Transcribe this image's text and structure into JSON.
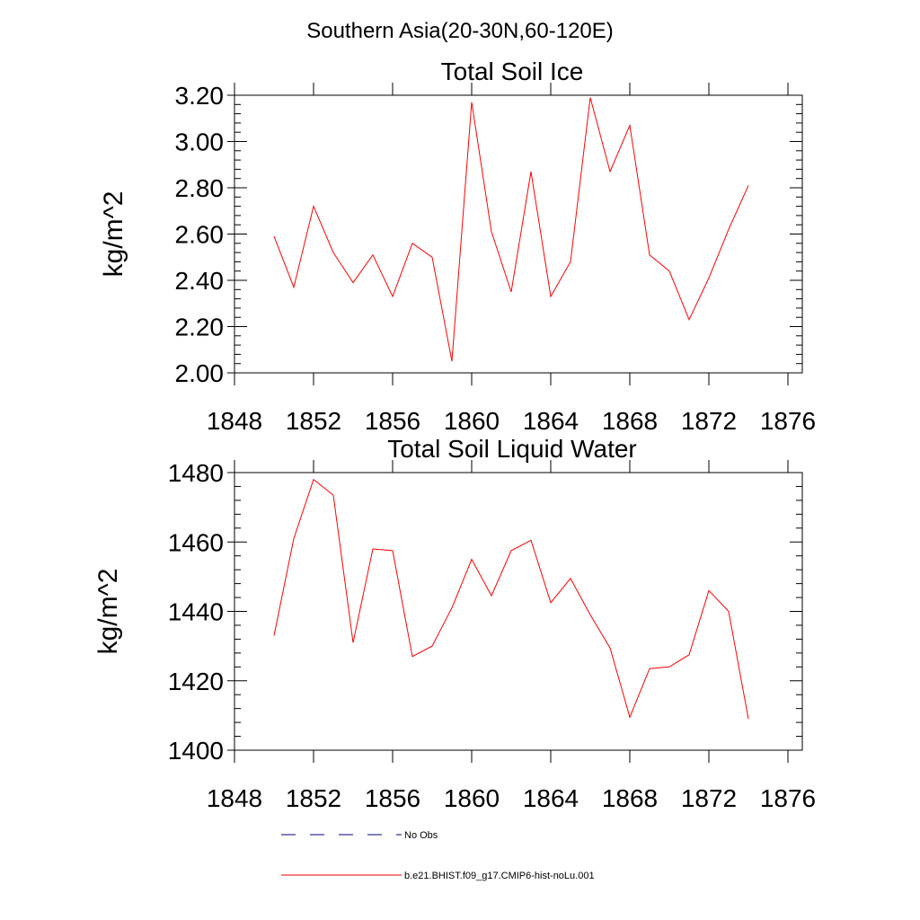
{
  "figure": {
    "main_title": "Southern Asia(20-30N,60-120E)"
  },
  "chart_data": [
    {
      "type": "line",
      "title": "Total Soil Ice",
      "xlabel": "",
      "ylabel": "kg/m^2",
      "xlim": [
        1848,
        1876
      ],
      "ylim": [
        2.0,
        3.2
      ],
      "xticks": [
        "1848",
        "1852",
        "1856",
        "1860",
        "1864",
        "1868",
        "1872",
        "1876"
      ],
      "yticks": [
        "2.00",
        "2.20",
        "2.40",
        "2.60",
        "2.80",
        "3.00",
        "3.20"
      ],
      "x": [
        1850,
        1851,
        1852,
        1853,
        1854,
        1855,
        1856,
        1857,
        1858,
        1859,
        1860,
        1861,
        1862,
        1863,
        1864,
        1865,
        1866,
        1867,
        1868,
        1869,
        1870,
        1871,
        1872,
        1873,
        1874
      ],
      "series": [
        {
          "name": "b.e21.BHIST.f09_g17.CMIP6-hist-noLu.001",
          "color": "#ff0000",
          "values": [
            2.59,
            2.37,
            2.72,
            2.52,
            2.39,
            2.51,
            2.33,
            2.56,
            2.5,
            2.05,
            3.17,
            2.61,
            2.35,
            2.87,
            2.33,
            2.48,
            3.19,
            2.87,
            3.07,
            2.51,
            2.44,
            2.23,
            2.41,
            2.62,
            2.81
          ]
        }
      ],
      "grid": false
    },
    {
      "type": "line",
      "title": "Total Soil Liquid Water",
      "xlabel": "",
      "ylabel": "kg/m^2",
      "xlim": [
        1848,
        1876
      ],
      "ylim": [
        1400,
        1480
      ],
      "xticks": [
        "1848",
        "1852",
        "1856",
        "1860",
        "1864",
        "1868",
        "1872",
        "1876"
      ],
      "yticks": [
        "1400",
        "1420",
        "1440",
        "1460",
        "1480"
      ],
      "x": [
        1850,
        1851,
        1852,
        1853,
        1854,
        1855,
        1856,
        1857,
        1858,
        1859,
        1860,
        1861,
        1862,
        1863,
        1864,
        1865,
        1866,
        1867,
        1868,
        1869,
        1870,
        1871,
        1872,
        1873,
        1874
      ],
      "series": [
        {
          "name": "b.e21.BHIST.f09_g17.CMIP6-hist-noLu.001",
          "color": "#ff0000",
          "values": [
            1433,
            1461,
            1478,
            1473.5,
            1431,
            1458,
            1457.5,
            1427,
            1430,
            1441,
            1455,
            1444.5,
            1457.5,
            1460.5,
            1442.5,
            1449.5,
            1439,
            1429.5,
            1409.5,
            1423.5,
            1424,
            1427.5,
            1446,
            1440,
            1409
          ]
        }
      ],
      "grid": false
    }
  ],
  "legend": {
    "placement": "bottom",
    "items": [
      {
        "label": "No Obs",
        "style": "dashed",
        "color": "#000080"
      },
      {
        "label": "b.e21.BHIST.f09_g17.CMIP6-hist-noLu.001",
        "style": "solid",
        "color": "#ff0000"
      }
    ]
  }
}
